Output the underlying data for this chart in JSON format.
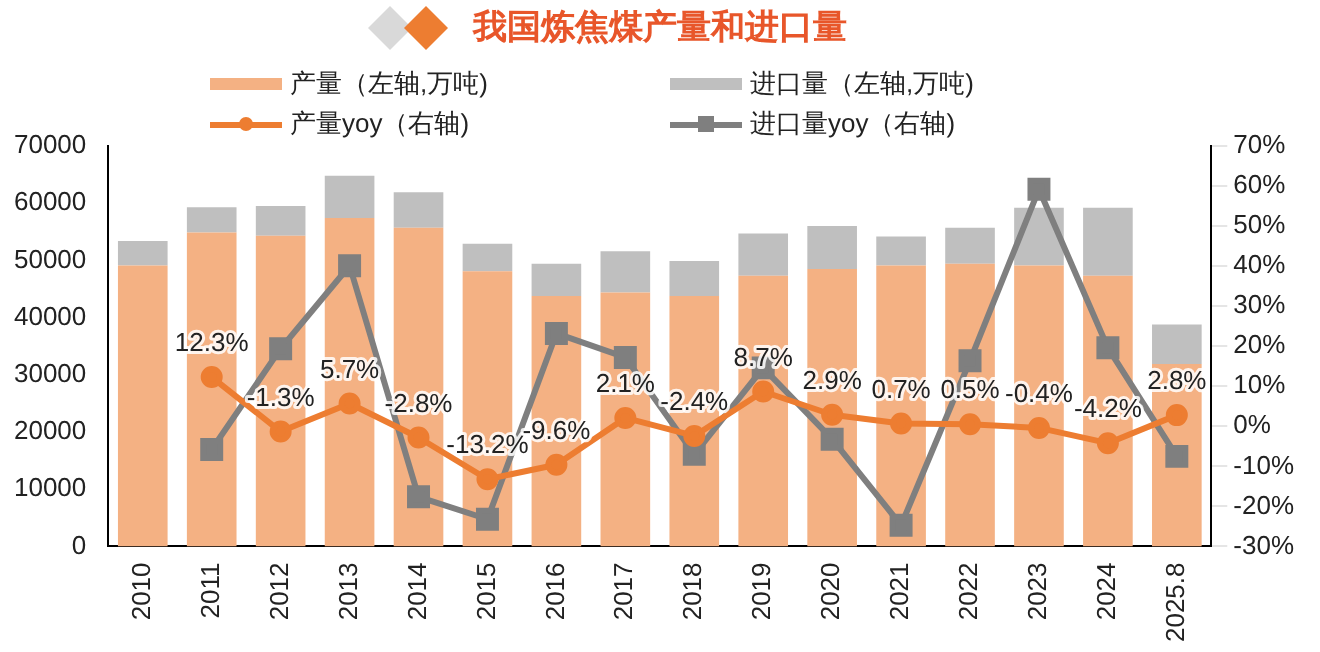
{
  "chart_data": {
    "type": "bar",
    "title": "我国炼焦煤产量和进口量",
    "stacked": true,
    "legend": "top",
    "grid": false,
    "categories": [
      "2010",
      "2011",
      "2012",
      "2013",
      "2014",
      "2015",
      "2016",
      "2017",
      "2018",
      "2019",
      "2020",
      "2021",
      "2022",
      "2023",
      "2024",
      "2025.8"
    ],
    "series": [
      {
        "name": "产量（左轴,万吨)",
        "color": "#f4b183",
        "values": [
          49100,
          54900,
          54300,
          57400,
          55700,
          48100,
          43800,
          44400,
          43800,
          47300,
          48500,
          49100,
          49400,
          49100,
          47300,
          31900
        ]
      },
      {
        "name": "进口量（左轴,万吨)",
        "color": "#bfbfbf",
        "values": [
          4300,
          4400,
          5200,
          7400,
          6200,
          4800,
          5600,
          7200,
          6100,
          7400,
          7500,
          5100,
          6300,
          10100,
          11900,
          6900
        ]
      },
      {
        "name": "产量yoy（右轴)",
        "type": "line",
        "axis": "y2",
        "color": "#ed7d31",
        "marker": "circle",
        "values": [
          null,
          12.3,
          -1.3,
          5.7,
          -2.8,
          -13.2,
          -9.6,
          2.1,
          -2.4,
          8.7,
          2.9,
          0.7,
          0.5,
          -0.4,
          -4.2,
          2.8
        ],
        "value_labels": [
          null,
          "12.3%",
          "-1.3%",
          "5.7%",
          "-2.8%",
          "-13.2%",
          "-9.6%",
          "2.1%",
          "-2.4%",
          "8.7%",
          "2.9%",
          "0.7%",
          "0.5%",
          "-0.4%",
          "-4.2%",
          "2.8%"
        ]
      },
      {
        "name": "进口量yoy（右轴)",
        "type": "line",
        "axis": "y2",
        "color": "#7f7f7f",
        "marker": "square",
        "values": [
          null,
          -5.8,
          19.4,
          40.1,
          -17.6,
          -23.2,
          23.2,
          17.2,
          -7.0,
          14.6,
          -3.2,
          -24.7,
          16.4,
          59.2,
          19.6,
          -7.5
        ]
      }
    ],
    "ylim": [
      0,
      70000
    ],
    "yticks": [
      0,
      10000,
      20000,
      30000,
      40000,
      50000,
      60000,
      70000
    ],
    "y2lim": [
      -30,
      70
    ],
    "y2ticks": [
      {
        "value": -30,
        "label": "-30%"
      },
      {
        "value": -20,
        "label": "-20%"
      },
      {
        "value": -10,
        "label": "-10%"
      },
      {
        "value": 0,
        "label": "0%"
      },
      {
        "value": 10,
        "label": "10%"
      },
      {
        "value": 20,
        "label": "20%"
      },
      {
        "value": 30,
        "label": "30%"
      },
      {
        "value": 40,
        "label": "40%"
      },
      {
        "value": 50,
        "label": "50%"
      },
      {
        "value": 60,
        "label": "60%"
      },
      {
        "value": 70,
        "label": "70%"
      }
    ]
  }
}
